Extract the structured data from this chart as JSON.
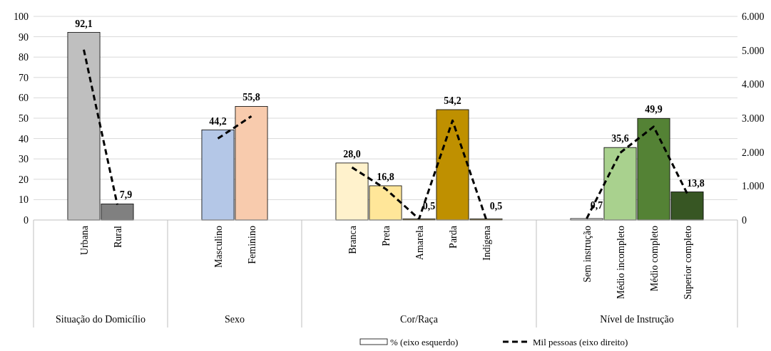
{
  "chart_data": {
    "type": "bar",
    "categories": [
      null,
      "Urbana",
      "Rural",
      null,
      null,
      "Masculino",
      "Feminino",
      null,
      null,
      "Branca",
      "Preta",
      "Amarela",
      "Parda",
      "Indígena",
      null,
      null,
      "Sem instrução",
      "Médio incompleto",
      "Médio completo",
      "Superior completo",
      null
    ],
    "series": [
      {
        "name": "% (eixo esquerdo)",
        "colors": [
          null,
          "#bfbfbf",
          "#808080",
          null,
          null,
          "#b4c7e7",
          "#f8cbad",
          null,
          null,
          "#fff2cc",
          "#ffe699",
          "#7f6000",
          "#bf9000",
          "#7f6000",
          null,
          null,
          "#f2f2f2",
          "#a9d18e",
          "#548235",
          "#375623",
          null
        ],
        "values": [
          null,
          92.1,
          7.9,
          null,
          null,
          44.2,
          55.8,
          null,
          null,
          28.0,
          16.8,
          0.5,
          54.2,
          0.5,
          null,
          null,
          0.7,
          35.6,
          49.9,
          13.8,
          null
        ],
        "value_labels": [
          null,
          "92,1",
          "7,9",
          null,
          null,
          "44,2",
          "55,8",
          null,
          null,
          "28,0",
          "16,8",
          "0,5",
          "54,2",
          "0,5",
          null,
          null,
          "0,7",
          "35,6",
          "49,9",
          "13,8",
          null
        ]
      },
      {
        "name": "Mil pessoas (eixo direito)",
        "type": "line",
        "axis": "y2",
        "color": "#000000",
        "line_style": "dashed",
        "values": [
          null,
          5020,
          450,
          null,
          null,
          2400,
          3060,
          null,
          null,
          1550,
          920,
          30,
          2930,
          30,
          null,
          null,
          40,
          1980,
          2750,
          780,
          null
        ]
      }
    ],
    "ylim": [
      0,
      100
    ],
    "yticks": [
      0,
      10,
      20,
      30,
      40,
      50,
      60,
      70,
      80,
      90,
      100
    ],
    "y2lim": [
      0,
      6000
    ],
    "y2ticks": [
      {
        "value": 0,
        "label": "0"
      },
      {
        "value": 1000,
        "label": "1.000"
      },
      {
        "value": 2000,
        "label": "2.000"
      },
      {
        "value": 3000,
        "label": "3.000"
      },
      {
        "value": 4000,
        "label": "4.000"
      },
      {
        "value": 5000,
        "label": "5.000"
      },
      {
        "value": 6000,
        "label": "6.000"
      }
    ],
    "grid": "y",
    "legend": "bottom",
    "annotations": [
      "Situação do Domicílio",
      "Sexo",
      "Cor/Raça",
      "Nível de Instrução"
    ]
  }
}
